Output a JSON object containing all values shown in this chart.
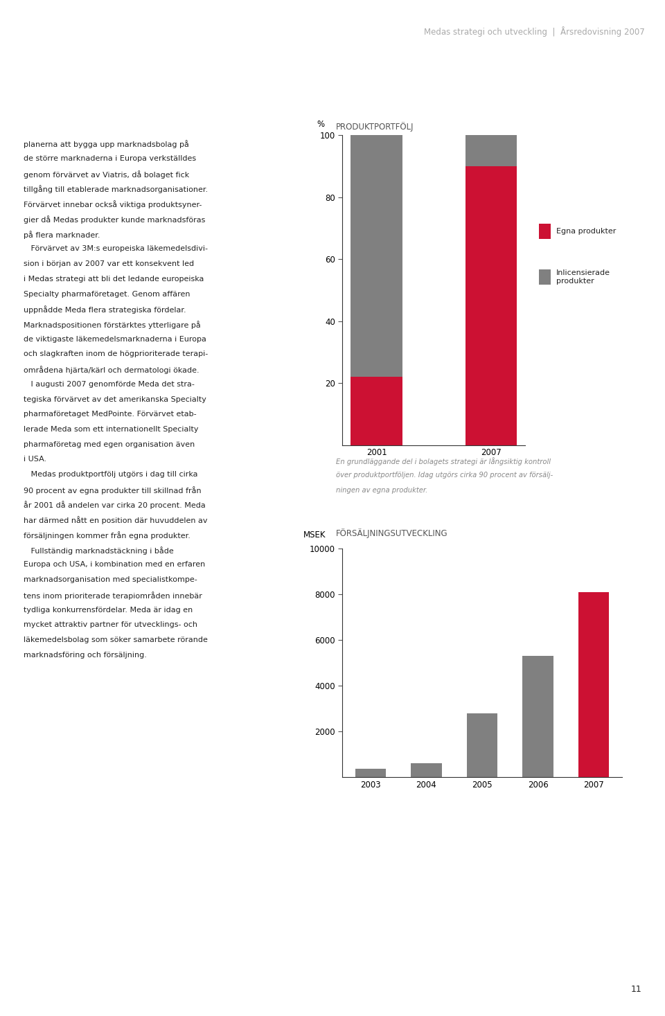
{
  "page_title": "Medas strategi och utveckling  |  Årsredovisning 2007",
  "page_number": "11",
  "left_lines": [
    "planerna att bygga upp marknadsbolag på",
    "de större marknaderna i Europa verkställdes",
    "genom förvärvet av Viatris, då bolaget fick",
    "tillgång till etablerade marknadsorganisationer.",
    "Förvärvet innebar också viktiga produktsyner-",
    "gier då Medas produkter kunde marknadsföras",
    "på flera marknader.",
    "   Förvärvet av 3M:s europeiska läkemedelsdivi-",
    "sion i början av 2007 var ett konsekvent led",
    "i Medas strategi att bli det ledande europeiska",
    "Specialty pharmaföretaget. Genom affären",
    "uppnådde Meda flera strategiska fördelar.",
    "Marknadspositionen förstärktes ytterligare på",
    "de viktigaste läkemedelsmarknaderna i Europa",
    "och slagkraften inom de högprioriterade terapi-",
    "områdena hjärta/kärl och dermatologi ökade.",
    "   I augusti 2007 genomförde Meda det stra-",
    "tegiska förvärvet av det amerikanska Specialty",
    "pharmaföretaget MedPointe. Förvärvet etab-",
    "lerade Meda som ett internationellt Specialty",
    "pharmaföretag med egen organisation även",
    "i USA.",
    "   Medas produktportfölj utgörs i dag till cirka",
    "90 procent av egna produkter till skillnad från",
    "år 2001 då andelen var cirka 20 procent. Meda",
    "har därmed nått en position där huvuddelen av",
    "försäljningen kommer från egna produkter.",
    "   Fullständig marknadstäckning i både",
    "Europa och USA, i kombination med en erfaren",
    "marknadsorganisation med specialistkompe-",
    "tens inom prioriterade terapiområden innebär",
    "tydliga konkurrensfördelar. Meda är idag en",
    "mycket attraktiv partner för utvecklings- och",
    "läkemedelsbolag som söker samarbete rörande",
    "marknadsföring och försäljning."
  ],
  "chart1": {
    "title": "PRODUKTPORTFÖLJ",
    "ylabel": "%",
    "ylim": [
      0,
      100
    ],
    "yticks": [
      20,
      40,
      60,
      80,
      100
    ],
    "categories": [
      "2001",
      "2007"
    ],
    "egna_produkter": [
      22,
      90
    ],
    "inlicensierade": [
      78,
      10
    ],
    "color_egna": "#cc1133",
    "color_inlic": "#808080",
    "legend_egna": "Egna produkter",
    "legend_inlic": "Inlicensierade\nprodukter",
    "caption_lines": [
      "En grundläggande del i bolagets strategi är långsiktig kontroll",
      "över produktportföljen. Idag utgörs cirka 90 procent av försälj-",
      "ningen av egna produkter."
    ]
  },
  "chart2": {
    "title": "FÖRSÄLJNINGSUTVECKLING",
    "ylabel": "MSEK",
    "ylim": [
      0,
      10000
    ],
    "yticks": [
      2000,
      4000,
      6000,
      8000,
      10000
    ],
    "categories": [
      "2003",
      "2004",
      "2005",
      "2006",
      "2007"
    ],
    "values": [
      380,
      600,
      2800,
      5300,
      8100
    ],
    "bar_colors": [
      "#808080",
      "#808080",
      "#808080",
      "#808080",
      "#cc1133"
    ]
  },
  "background_color": "#ffffff",
  "text_color": "#222222",
  "title_color": "#aaaaaa",
  "caption_color": "#888888"
}
